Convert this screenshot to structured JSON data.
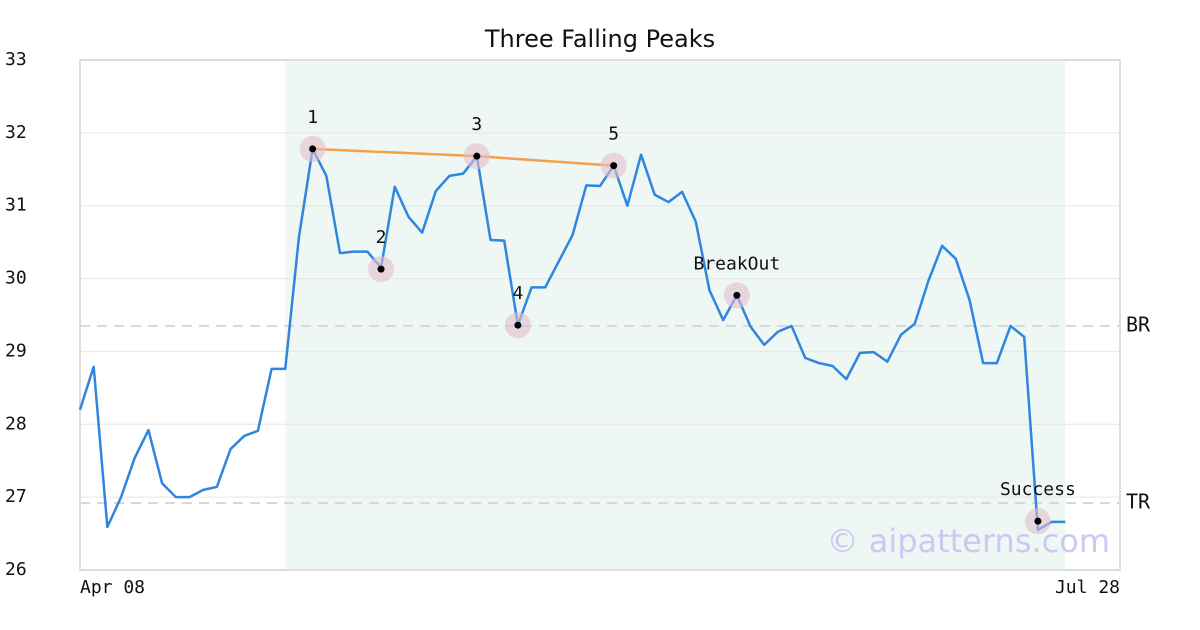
{
  "chart_data": {
    "type": "line",
    "title": "Three Falling Peaks",
    "color": "#2e86de",
    "values": [
      28.2,
      28.79,
      26.59,
      27.0,
      27.54,
      27.92,
      27.19,
      27.0,
      27.0,
      27.1,
      27.14,
      27.66,
      27.84,
      27.91,
      28.76,
      28.76,
      30.57,
      31.78,
      31.41,
      30.35,
      30.37,
      30.37,
      30.15,
      31.26,
      30.85,
      30.63,
      31.2,
      31.41,
      31.44,
      31.68,
      30.53,
      30.52,
      29.36,
      29.88,
      29.88,
      30.24,
      30.6,
      31.28,
      31.27,
      31.55,
      31.0,
      31.7,
      31.15,
      31.05,
      31.19,
      30.78,
      29.84,
      29.43,
      29.77,
      29.34,
      29.09,
      29.27,
      29.35,
      28.91,
      28.84,
      28.8,
      28.62,
      28.98,
      28.99,
      28.86,
      29.23,
      29.38,
      29.97,
      30.45,
      30.27,
      29.71,
      28.84,
      28.84,
      29.35,
      29.2,
      26.55,
      26.66,
      26.66
    ],
    "xlim": [
      0,
      76
    ],
    "xticks": [
      {
        "value": 0,
        "label": "Apr 08"
      },
      {
        "value": 76,
        "label": "Jul 28"
      }
    ],
    "ylim": [
      26,
      33
    ],
    "yticks": [
      26,
      27,
      28,
      29,
      30,
      31,
      32,
      33
    ],
    "grid": true,
    "highlight": {
      "from": 15,
      "to": 72,
      "color": "#eef7f3"
    },
    "levels": [
      {
        "label": "BR",
        "value": 29.35
      },
      {
        "label": "TR",
        "value": 26.92
      }
    ],
    "trend_line": {
      "color": "#f4a04a",
      "x": [
        17,
        29,
        39
      ],
      "y": [
        31.78,
        31.68,
        31.55
      ]
    },
    "annotations": [
      {
        "label": "1",
        "x": 17,
        "y": 31.78
      },
      {
        "label": "2",
        "x": 22,
        "y": 30.13
      },
      {
        "label": "3",
        "x": 29,
        "y": 31.68
      },
      {
        "label": "4",
        "x": 32,
        "y": 29.36
      },
      {
        "label": "5",
        "x": 39,
        "y": 31.55
      },
      {
        "label": "BreakOut",
        "x": 48,
        "y": 29.77
      },
      {
        "label": "Success",
        "x": 70,
        "y": 26.67
      }
    ],
    "watermark": "© aipatterns.com"
  }
}
